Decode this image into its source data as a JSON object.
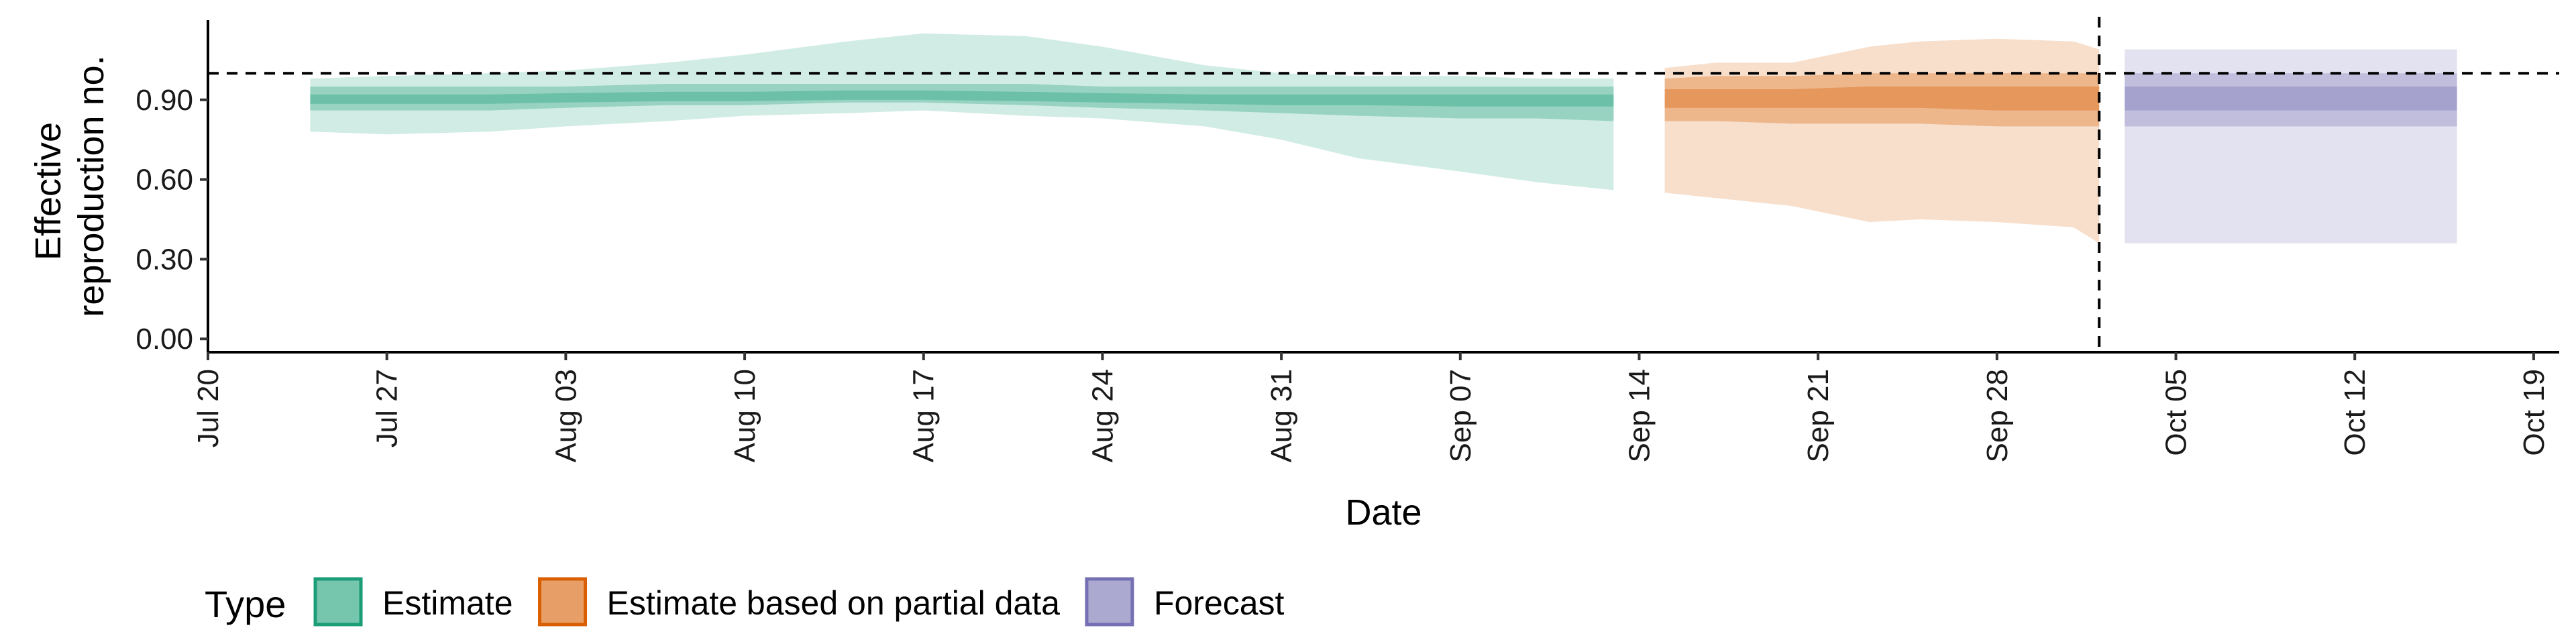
{
  "chart_data": {
    "type": "area",
    "xlabel": "Date",
    "ylabel_lines": [
      "Effective",
      "reproduction no."
    ],
    "x_ticks": [
      "Jul 20",
      "Jul 27",
      "Aug 03",
      "Aug 10",
      "Aug 17",
      "Aug 24",
      "Aug 31",
      "Sep 07",
      "Sep 14",
      "Sep 21",
      "Sep 28",
      "Oct 05",
      "Oct 12",
      "Oct 19"
    ],
    "x_tick_dates": [
      "2020-07-20",
      "2020-07-27",
      "2020-08-03",
      "2020-08-10",
      "2020-08-17",
      "2020-08-24",
      "2020-08-31",
      "2020-09-07",
      "2020-09-14",
      "2020-09-21",
      "2020-09-28",
      "2020-10-05",
      "2020-10-12",
      "2020-10-19"
    ],
    "y_ticks": [
      "0.00",
      "0.30",
      "0.60",
      "0.90"
    ],
    "y_tick_values": [
      0,
      0.3,
      0.6,
      0.9
    ],
    "xlim": [
      "2020-07-20",
      "2020-10-20"
    ],
    "ylim": [
      -0.05,
      1.2
    ],
    "reference_line_y": 1.0,
    "reference_line_date": "2020-10-02",
    "legend_title": "Type",
    "legend_position": "bottom-left",
    "series": [
      {
        "name": "Estimate",
        "color": "#1b9e77",
        "x": [
          "2020-07-24",
          "2020-07-27",
          "2020-07-31",
          "2020-08-03",
          "2020-08-07",
          "2020-08-10",
          "2020-08-14",
          "2020-08-17",
          "2020-08-21",
          "2020-08-24",
          "2020-08-28",
          "2020-08-31",
          "2020-09-03",
          "2020-09-07",
          "2020-09-10",
          "2020-09-13"
        ],
        "median": [
          0.9,
          0.9,
          0.9,
          0.91,
          0.91,
          0.91,
          0.92,
          0.92,
          0.91,
          0.91,
          0.91,
          0.9,
          0.9,
          0.9,
          0.9,
          0.9
        ],
        "lower_90": [
          0.78,
          0.77,
          0.78,
          0.8,
          0.82,
          0.84,
          0.85,
          0.86,
          0.84,
          0.83,
          0.8,
          0.75,
          0.68,
          0.63,
          0.59,
          0.56
        ],
        "upper_90": [
          0.98,
          0.99,
          1.0,
          1.01,
          1.04,
          1.07,
          1.12,
          1.15,
          1.14,
          1.1,
          1.03,
          1.0,
          0.99,
          0.99,
          0.98,
          0.98
        ],
        "lower_50": [
          0.86,
          0.86,
          0.86,
          0.87,
          0.88,
          0.88,
          0.89,
          0.89,
          0.88,
          0.87,
          0.86,
          0.85,
          0.84,
          0.83,
          0.83,
          0.82
        ],
        "upper_50": [
          0.95,
          0.95,
          0.95,
          0.95,
          0.96,
          0.96,
          0.96,
          0.96,
          0.96,
          0.95,
          0.95,
          0.95,
          0.95,
          0.95,
          0.95,
          0.95
        ],
        "lower_20": [
          0.885,
          0.885,
          0.885,
          0.89,
          0.895,
          0.895,
          0.9,
          0.9,
          0.895,
          0.89,
          0.885,
          0.88,
          0.88,
          0.875,
          0.875,
          0.875
        ],
        "upper_20": [
          0.92,
          0.92,
          0.92,
          0.925,
          0.93,
          0.93,
          0.935,
          0.935,
          0.93,
          0.925,
          0.92,
          0.92,
          0.92,
          0.92,
          0.92,
          0.92
        ]
      },
      {
        "name": "Estimate based on partial data",
        "color": "#d95f02",
        "x": [
          "2020-09-15",
          "2020-09-17",
          "2020-09-20",
          "2020-09-23",
          "2020-09-25",
          "2020-09-28",
          "2020-10-01",
          "2020-10-02"
        ],
        "median": [
          0.9,
          0.9,
          0.9,
          0.91,
          0.91,
          0.9,
          0.9,
          0.9
        ],
        "lower_90": [
          0.55,
          0.53,
          0.5,
          0.44,
          0.45,
          0.44,
          0.42,
          0.36
        ],
        "upper_90": [
          1.02,
          1.04,
          1.04,
          1.1,
          1.12,
          1.13,
          1.12,
          1.09
        ],
        "lower_50": [
          0.82,
          0.82,
          0.81,
          0.81,
          0.81,
          0.8,
          0.8,
          0.8
        ],
        "upper_50": [
          0.98,
          0.99,
          0.99,
          1.0,
          1.0,
          1.0,
          1.0,
          1.0
        ],
        "lower_20": [
          0.87,
          0.87,
          0.87,
          0.87,
          0.87,
          0.86,
          0.86,
          0.86
        ],
        "upper_20": [
          0.94,
          0.94,
          0.94,
          0.95,
          0.95,
          0.95,
          0.95,
          0.95
        ]
      },
      {
        "name": "Forecast",
        "color": "#7570b3",
        "x": [
          "2020-10-03",
          "2020-10-16"
        ],
        "median": [
          0.9,
          0.9
        ],
        "lower_90": [
          0.36,
          0.36
        ],
        "upper_90": [
          1.09,
          1.09
        ],
        "lower_50": [
          0.8,
          0.8
        ],
        "upper_50": [
          1.0,
          1.0
        ],
        "lower_20": [
          0.86,
          0.86
        ],
        "upper_20": [
          0.95,
          0.95
        ]
      }
    ]
  }
}
